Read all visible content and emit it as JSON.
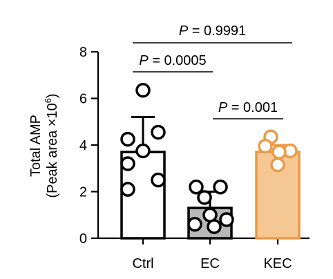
{
  "chart_data": {
    "type": "bar",
    "categories": [
      "Ctrl",
      "EC",
      "KEC"
    ],
    "ylabel_line1": "Total AMP",
    "ylabel_line2_prefix": "(Peak area ×10",
    "ylabel_line2_sup": "6",
    "ylabel_line2_suffix": ")",
    "ylim": [
      0,
      8
    ],
    "yticks": [
      0,
      2,
      4,
      6,
      8
    ],
    "grid": false,
    "series": [
      {
        "values": [
          3.7,
          1.3,
          3.7
        ],
        "errors": [
          1.5,
          0.7,
          0.3
        ],
        "points": [
          [
            6.35,
            4.55,
            4.25,
            3.75,
            3.2,
            2.5,
            2.1
          ],
          [
            2.2,
            2.2,
            1.75,
            1.0,
            0.8,
            0.6,
            0.5
          ],
          [
            4.35,
            3.95,
            3.75,
            3.7,
            3.15
          ]
        ]
      }
    ],
    "colors": {
      "bar_fill": [
        "#ffffff",
        "#b8b8b8",
        "#f5c793"
      ],
      "bar_stroke": [
        "#000000",
        "#000000",
        "#eb9a47"
      ],
      "point_stroke": [
        "#000000",
        "#000000",
        "#eb9a47"
      ]
    },
    "annotations": [
      {
        "p_label": "P",
        "text": " = 0.9991",
        "from": "Ctrl",
        "to": "KEC"
      },
      {
        "p_label": "P",
        "text": " = 0.0005",
        "from": "Ctrl",
        "to": "EC"
      },
      {
        "p_label": "P",
        "text": " = 0.001",
        "from": "EC",
        "to": "KEC"
      }
    ]
  }
}
